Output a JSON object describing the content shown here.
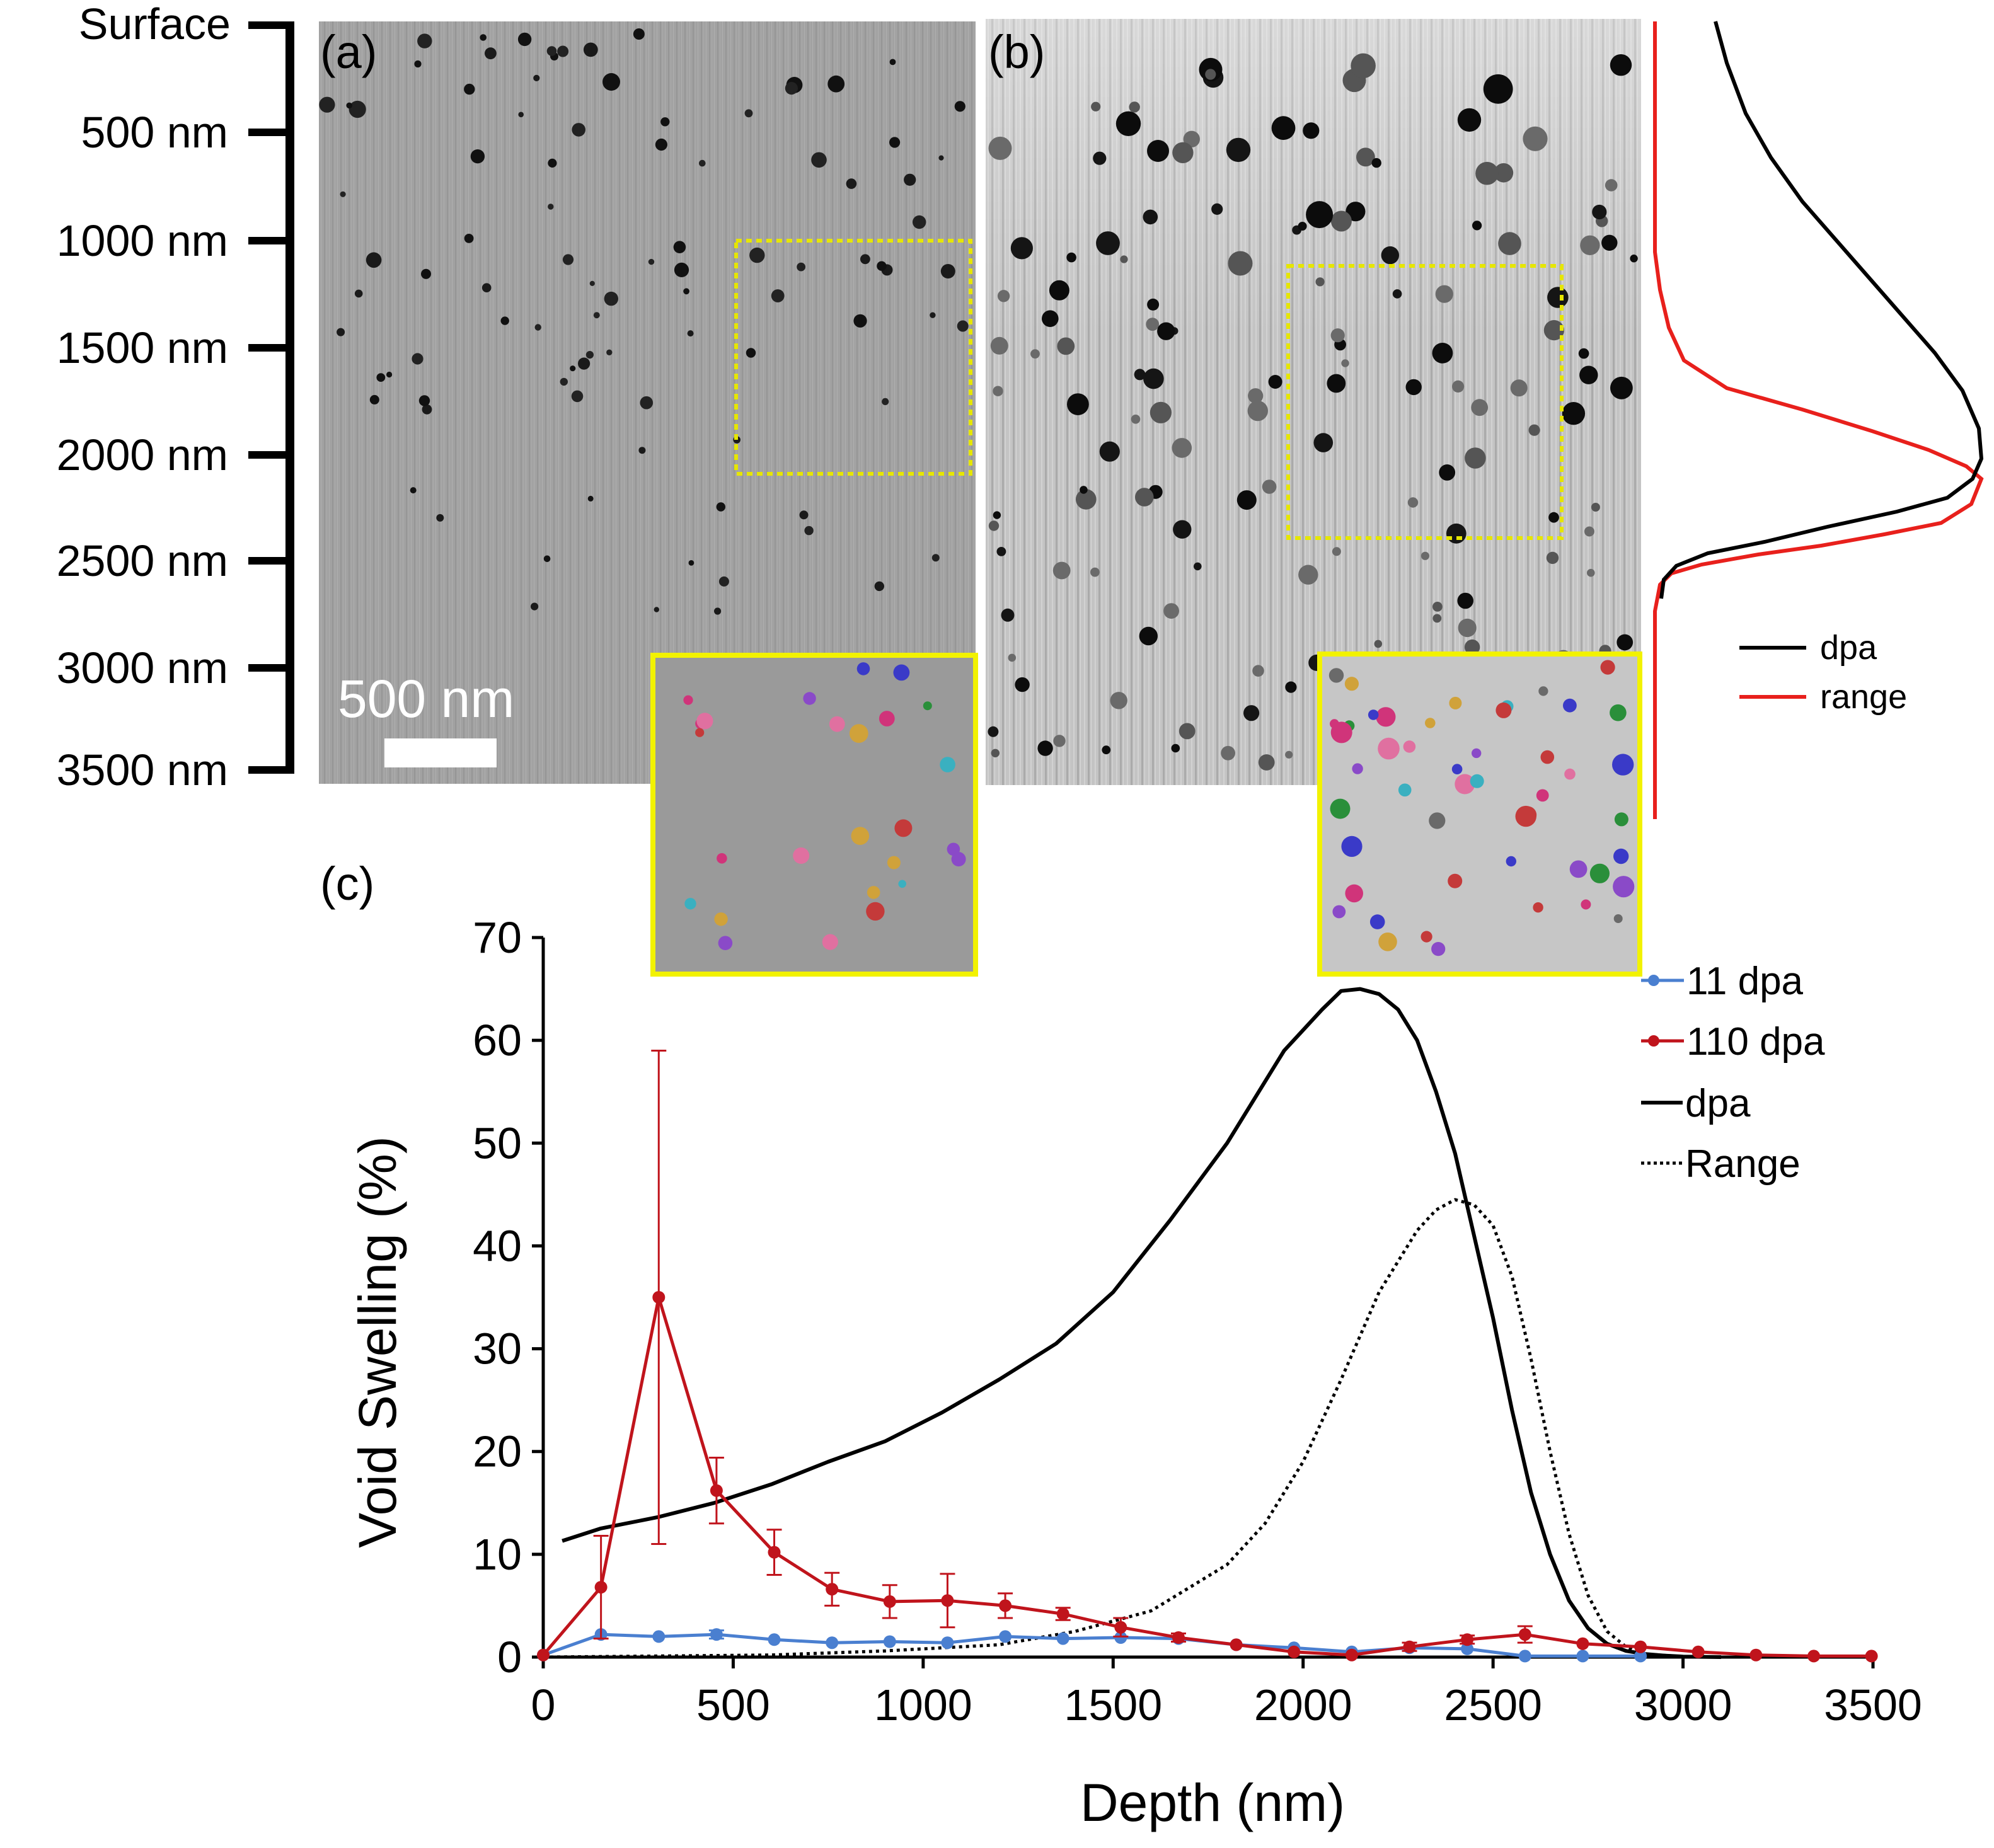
{
  "depth_scale": {
    "labels": [
      "Surface",
      "500 nm",
      "1000 nm",
      "1500 nm",
      "2000 nm",
      "2500 nm",
      "3000 nm",
      "3500 nm"
    ]
  },
  "panels": {
    "a": {
      "label": "(a)",
      "scale_bar_label": "500 nm"
    },
    "b": {
      "label": "(b)"
    },
    "c": {
      "label": "(c)"
    }
  },
  "profile_legend": {
    "items": [
      "dpa",
      "range"
    ]
  },
  "colors": {
    "series_11": "#4a7fd0",
    "series_110": "#c0141c",
    "dpa": "#000000",
    "range_profile": "#e8201c",
    "roi_box": "#e6e600",
    "inset_border": "#f2f200"
  },
  "chart_data": {
    "type": "line",
    "xlabel": "Depth (nm)",
    "ylabel": "Void Swelling (%)",
    "xlim": [
      0,
      3500
    ],
    "ylim": [
      0,
      70
    ],
    "xticks": [
      "0",
      "500",
      "1000",
      "1500",
      "2000",
      "2500",
      "3000",
      "3500"
    ],
    "yticks": [
      "0",
      "10",
      "20",
      "30",
      "40",
      "50",
      "60",
      "70"
    ],
    "legend_items": [
      "11 dpa",
      "110 dpa",
      "dpa",
      "Range"
    ],
    "series": [
      {
        "name": "11 dpa",
        "x": [
          0,
          152,
          304,
          456,
          608,
          760,
          912,
          1064,
          1216,
          1368,
          1520,
          1672,
          1824,
          1976,
          2128,
          2280,
          2432,
          2584,
          2736,
          2888
        ],
        "values": [
          0.2,
          2.2,
          2.0,
          2.2,
          1.7,
          1.4,
          1.5,
          1.4,
          2.0,
          1.8,
          1.9,
          1.8,
          1.2,
          0.9,
          0.5,
          0.9,
          0.8,
          0.1,
          0.1,
          0.1
        ],
        "errors": [
          0,
          0.3,
          0.2,
          0.4,
          0.2,
          0.2,
          0.2,
          0.2,
          0.3,
          0.2,
          0.2,
          0.2,
          0.2,
          0.1,
          0.1,
          0.1,
          0.1,
          0.05,
          0.05,
          0.05
        ]
      },
      {
        "name": "110 dpa",
        "x": [
          0,
          152,
          304,
          456,
          608,
          760,
          912,
          1064,
          1216,
          1368,
          1520,
          1672,
          1824,
          1976,
          2128,
          2280,
          2432,
          2584,
          2736,
          2888,
          3040,
          3192,
          3344,
          3496
        ],
        "values": [
          0.2,
          6.8,
          35.0,
          16.2,
          10.2,
          6.6,
          5.4,
          5.5,
          5.0,
          4.2,
          2.9,
          1.9,
          1.2,
          0.5,
          0.2,
          1.0,
          1.7,
          2.2,
          1.3,
          1.0,
          0.5,
          0.2,
          0.1,
          0.1
        ],
        "errors": [
          0,
          5.0,
          24.0,
          3.2,
          2.2,
          1.6,
          1.6,
          2.6,
          1.2,
          0.6,
          0.9,
          0.4,
          0.3,
          0.2,
          0.1,
          0.4,
          0.4,
          0.8,
          0.3,
          0.2,
          0.1,
          0.05,
          0.05,
          0.05
        ]
      },
      {
        "name": "dpa",
        "x": [
          50,
          150,
          300,
          450,
          600,
          750,
          900,
          1050,
          1200,
          1350,
          1500,
          1650,
          1800,
          1950,
          2050,
          2100,
          2150,
          2200,
          2250,
          2300,
          2350,
          2400,
          2450,
          2500,
          2550,
          2600,
          2650,
          2700,
          2750,
          2800,
          2850,
          2900,
          2950,
          3000,
          3100
        ],
        "values": [
          11.3,
          12.5,
          13.6,
          15.0,
          16.8,
          19.0,
          21.0,
          23.8,
          27.0,
          30.5,
          35.5,
          42.5,
          50.0,
          59.0,
          63.0,
          64.8,
          65.0,
          64.5,
          63.0,
          60.0,
          55.0,
          49.0,
          41.0,
          33.0,
          24.0,
          16.0,
          10.0,
          5.5,
          2.8,
          1.3,
          0.6,
          0.3,
          0.15,
          0.05,
          0.0
        ]
      },
      {
        "name": "Range",
        "x": [
          0,
          600,
          900,
          1200,
          1400,
          1600,
          1800,
          1900,
          2000,
          2100,
          2200,
          2300,
          2350,
          2400,
          2450,
          2500,
          2550,
          2600,
          2650,
          2700,
          2750,
          2800,
          2850,
          2900,
          3000,
          3100
        ],
        "values": [
          0.0,
          0.2,
          0.6,
          1.2,
          2.5,
          4.5,
          9.0,
          13.0,
          19.0,
          27.0,
          35.5,
          41.5,
          43.5,
          44.5,
          44.0,
          42.0,
          37.0,
          29.0,
          20.0,
          12.0,
          6.0,
          2.5,
          1.0,
          0.3,
          0.05,
          0.0
        ]
      }
    ]
  }
}
